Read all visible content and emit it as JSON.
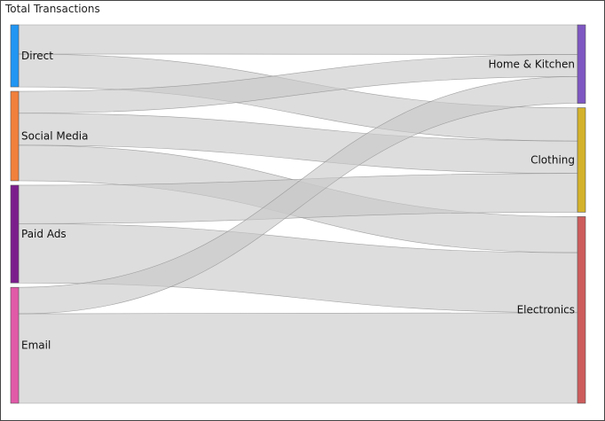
{
  "chart_data": {
    "type": "sankey",
    "title": "Total Transactions",
    "sources": [
      {
        "name": "Direct",
        "color": "#2196F3"
      },
      {
        "name": "Social Media",
        "color": "#F0803C"
      },
      {
        "name": "Paid Ads",
        "color": "#7B1E8C"
      },
      {
        "name": "Email",
        "color": "#E05AA8"
      }
    ],
    "targets": [
      {
        "name": "Home & Kitchen",
        "color": "#7E57C2"
      },
      {
        "name": "Clothing",
        "color": "#D4B22A"
      },
      {
        "name": "Electronics",
        "color": "#CD5C5C"
      }
    ],
    "links": [
      {
        "source": "Direct",
        "target": "Home & Kitchen",
        "value": 32
      },
      {
        "source": "Direct",
        "target": "Clothing",
        "value": 36
      },
      {
        "source": "Social Media",
        "target": "Home & Kitchen",
        "value": 24
      },
      {
        "source": "Social Media",
        "target": "Clothing",
        "value": 35
      },
      {
        "source": "Social Media",
        "target": "Electronics",
        "value": 39
      },
      {
        "source": "Paid Ads",
        "target": "Clothing",
        "value": 42
      },
      {
        "source": "Paid Ads",
        "target": "Electronics",
        "value": 65
      },
      {
        "source": "Email",
        "target": "Home & Kitchen",
        "value": 29
      },
      {
        "source": "Email",
        "target": "Electronics",
        "value": 98
      }
    ]
  }
}
